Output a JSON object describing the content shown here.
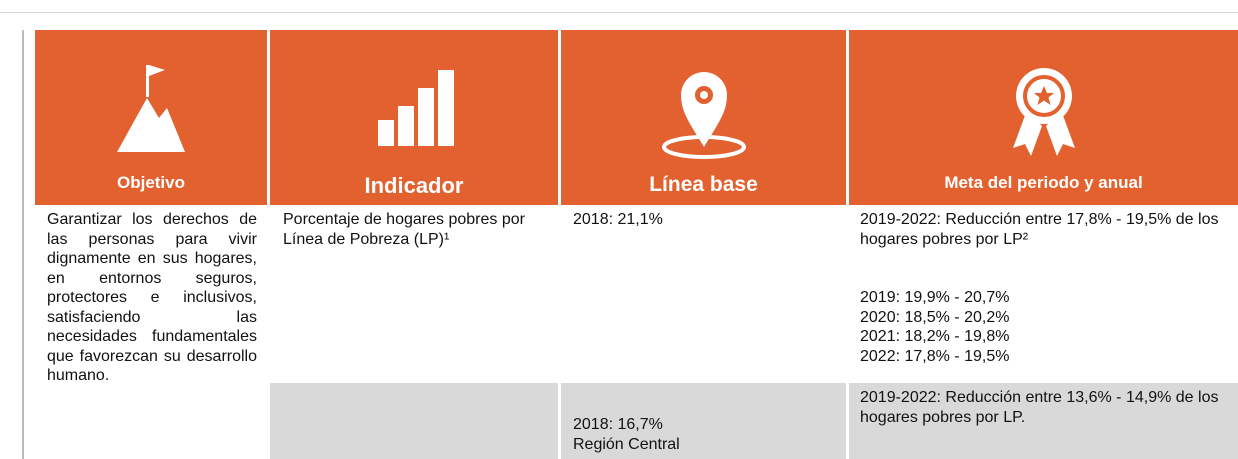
{
  "header": {
    "columns": [
      "Objetivo",
      "Indicador",
      "Línea base",
      "Meta del periodo y anual"
    ]
  },
  "table": {
    "objective": "Garantizar los derechos de las personas para vivir dignamente en sus hogares, en entornos seguros, protectores e inclusivos, satisfaciendo las necesidades fundamentales que favorezcan su desarrollo humano.",
    "rows": [
      {
        "indicator": "Porcentaje de hogares pobres por Línea de Pobreza (LP)¹",
        "baseline": [
          "2018: 21,1%"
        ],
        "goal": "2019-2022: Reducción entre 17,8% - 19,5% de los hogares pobres por LP²",
        "annual": [
          "2019: 19,9% - 20,7%",
          "2020: 18,5% - 20,2%",
          "2021: 18,2% - 19,8%",
          "2022: 17,8% - 19,5%"
        ]
      },
      {
        "baseline": [
          "2018: 16,7%",
          "Región Central"
        ],
        "goal": "2019-2022: Reducción entre 13,6% - 14,9% de los hogares pobres por LP."
      }
    ]
  }
}
